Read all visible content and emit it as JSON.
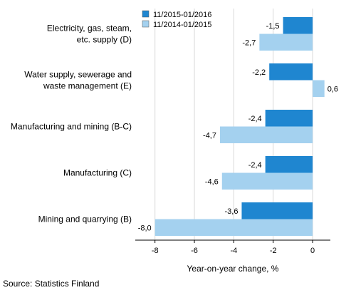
{
  "source": "Source: Statistics Finland",
  "chart_data": {
    "type": "bar",
    "orientation": "horizontal",
    "title": "",
    "xlabel": "Year-on-year change, %",
    "ylabel": "",
    "xlim": [
      -9,
      0.9
    ],
    "x_ticks": [
      -8,
      -6,
      -4,
      -2,
      0
    ],
    "x_tick_labels": [
      "-8",
      "-6",
      "-4",
      "-2",
      "0"
    ],
    "grid": true,
    "legend_position": "top",
    "categories": [
      "Electricity, gas, steam,\netc. supply (D)",
      "Water supply, sewerage and\nwaste management (E)",
      "Manufacturing and mining (B-C)",
      "Manufacturing (C)",
      "Mining and quarrying (B)"
    ],
    "series": [
      {
        "name": "11/2015-01/2016",
        "color": "#1f86d0",
        "values": [
          -1.5,
          -2.2,
          -2.4,
          -2.4,
          -3.6
        ],
        "labels": [
          "-1,5",
          "-2,2",
          "-2,4",
          "-2,4",
          "-3,6"
        ]
      },
      {
        "name": "11/2014-01/2015",
        "color": "#a4d1ef",
        "values": [
          -2.7,
          0.6,
          -4.7,
          -4.6,
          -8.0
        ],
        "labels": [
          "-2,7",
          "0,6",
          "-4,7",
          "-4,6",
          "-8,0"
        ]
      }
    ]
  }
}
